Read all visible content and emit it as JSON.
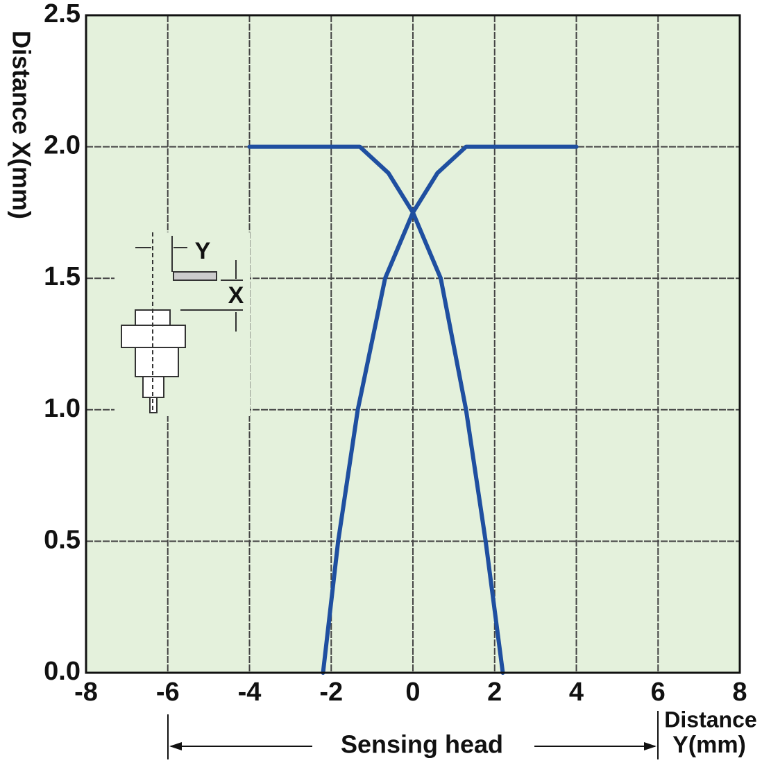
{
  "chart_data": {
    "type": "line",
    "ylabel": "Distance X(mm)",
    "xlabel": [
      "Distance",
      "Y(mm)"
    ],
    "annotations": {
      "range": "Sensing head",
      "inset_y": "Y",
      "inset_x": "X"
    },
    "series": [
      {
        "color": "#1f4fa0",
        "x": [
          -4,
          -1.3,
          -0.6,
          0,
          0.68,
          1.3,
          1.78,
          2.2
        ],
        "values": [
          2.0,
          2.0,
          1.9,
          1.75,
          1.5,
          1.0,
          0.5,
          0.0
        ]
      },
      {
        "color": "#1f4fa0",
        "x": [
          4,
          1.3,
          0.6,
          0,
          -0.68,
          -1.35,
          -1.83,
          -2.2
        ],
        "values": [
          2.0,
          2.0,
          1.9,
          1.75,
          1.5,
          1.0,
          0.5,
          0.0
        ]
      }
    ],
    "xlim": [
      -8,
      8
    ],
    "xticks": [
      -8,
      -6,
      -4,
      -2,
      0,
      2,
      4,
      6,
      8
    ],
    "ylim": [
      0,
      2.5
    ],
    "yticks": [
      {
        "value": 0,
        "label": "0.0"
      },
      {
        "value": 0.5,
        "label": "0.5"
      },
      {
        "value": 1,
        "label": "1.0"
      },
      {
        "value": 1.5,
        "label": "1.5"
      },
      {
        "value": 2,
        "label": "2.0"
      },
      {
        "value": 2.5,
        "label": "2.5"
      }
    ],
    "grid": true
  }
}
